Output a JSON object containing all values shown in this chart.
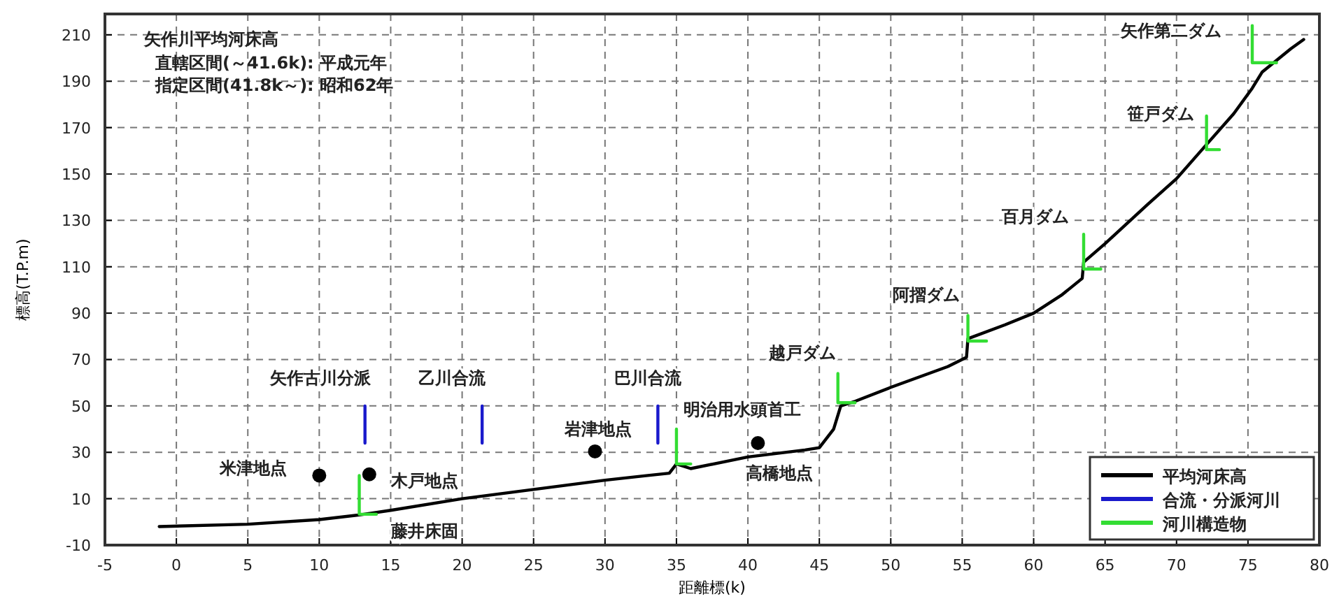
{
  "chart_data": {
    "type": "line",
    "title": "矢作川平均河床高",
    "xlabel": "距離標(k)",
    "ylabel": "標高(T.P.m)",
    "annotations": [
      "直轄区間(～41.6k): 平成元年",
      "指定区間(41.8k～): 昭和62年",
      {
        "text": "矢作古川分派",
        "x": 13.2,
        "y": 50
      },
      {
        "text": "乙川合流",
        "x": 21.4,
        "y": 50
      },
      {
        "text": "巴川合流",
        "x": 33.7,
        "y": 50
      },
      {
        "text": "米津地点",
        "x": 10,
        "y": 20
      },
      {
        "text": "木戸地点",
        "x": 13.5,
        "y": 20.5
      },
      {
        "text": "藤井床固",
        "x": 12.8,
        "y": 3.3
      },
      {
        "text": "岩津地点",
        "x": 29.3,
        "y": 30.4
      },
      {
        "text": "明治用水頭首工",
        "x": 35,
        "y": 40
      },
      {
        "text": "高橋地点",
        "x": 40.7,
        "y": 34
      },
      {
        "text": "越戸ダム",
        "x": 46.3,
        "y": 64
      },
      {
        "text": "阿摺ダム",
        "x": 55.4,
        "y": 89
      },
      {
        "text": "百月ダム",
        "x": 63.5,
        "y": 124
      },
      {
        "text": "笹戸ダム",
        "x": 72.1,
        "y": 175
      },
      {
        "text": "矢作第二ダム",
        "x": 75.3,
        "y": 214
      }
    ],
    "xlim": [
      -5,
      80
    ],
    "ylim": [
      -10,
      219
    ],
    "xticks": [
      -5,
      0,
      5,
      10,
      15,
      20,
      25,
      30,
      35,
      40,
      45,
      50,
      55,
      60,
      65,
      70,
      75,
      80
    ],
    "yticks": [
      -10,
      10,
      30,
      50,
      70,
      90,
      110,
      130,
      150,
      170,
      190,
      210
    ],
    "grid": true,
    "legend": "bottom right",
    "series": [
      {
        "name": "平均河床高",
        "color": "#000000",
        "x": [
          -1.2,
          5,
          10,
          12.8,
          15,
          20,
          25,
          30,
          33,
          34.5,
          35,
          36,
          40,
          44,
          45,
          46,
          46.5,
          47.5,
          50,
          54,
          55.3,
          55.4,
          58,
          60,
          62,
          63.4,
          63.5,
          65,
          68,
          70,
          72,
          74,
          75.3,
          76,
          78,
          78.9
        ],
        "values": [
          -2,
          -1,
          1,
          3,
          5,
          10,
          14,
          18,
          20,
          21,
          25,
          23,
          28,
          31,
          32,
          40,
          50,
          52,
          58,
          67,
          71,
          79,
          85,
          90,
          98,
          105,
          112,
          120,
          137,
          148,
          162,
          176,
          187,
          194,
          204,
          208
        ]
      },
      {
        "name": "合流・分派河川",
        "color": "#1a1acc",
        "x": [
          13.2,
          13.2,
          null,
          21.4,
          21.4,
          null,
          33.7,
          33.7
        ],
        "values": [
          34,
          50,
          null,
          34,
          50,
          null,
          34,
          50
        ]
      },
      {
        "name": "河川構造物",
        "color": "#33dd33",
        "x": [
          12.8,
          12.8,
          14,
          null,
          35,
          35,
          36,
          null,
          46.3,
          46.3,
          47.5,
          null,
          55.4,
          55.4,
          56.7,
          null,
          63.5,
          63.5,
          64.7,
          null,
          72.1,
          72.1,
          73,
          null,
          75.3,
          75.3,
          77
        ],
        "values": [
          20,
          3.3,
          3.3,
          null,
          40,
          25,
          25,
          null,
          64,
          51.4,
          51.4,
          null,
          89,
          78,
          78,
          null,
          124,
          109,
          109,
          null,
          175,
          160.5,
          160.5,
          null,
          214,
          198,
          198
        ]
      },
      {
        "type": "scatter",
        "color": "#000000",
        "marker": "circle",
        "x": [
          10,
          13.5,
          29.3,
          40.7
        ],
        "values": [
          20,
          20.5,
          30.4,
          34
        ]
      }
    ]
  }
}
